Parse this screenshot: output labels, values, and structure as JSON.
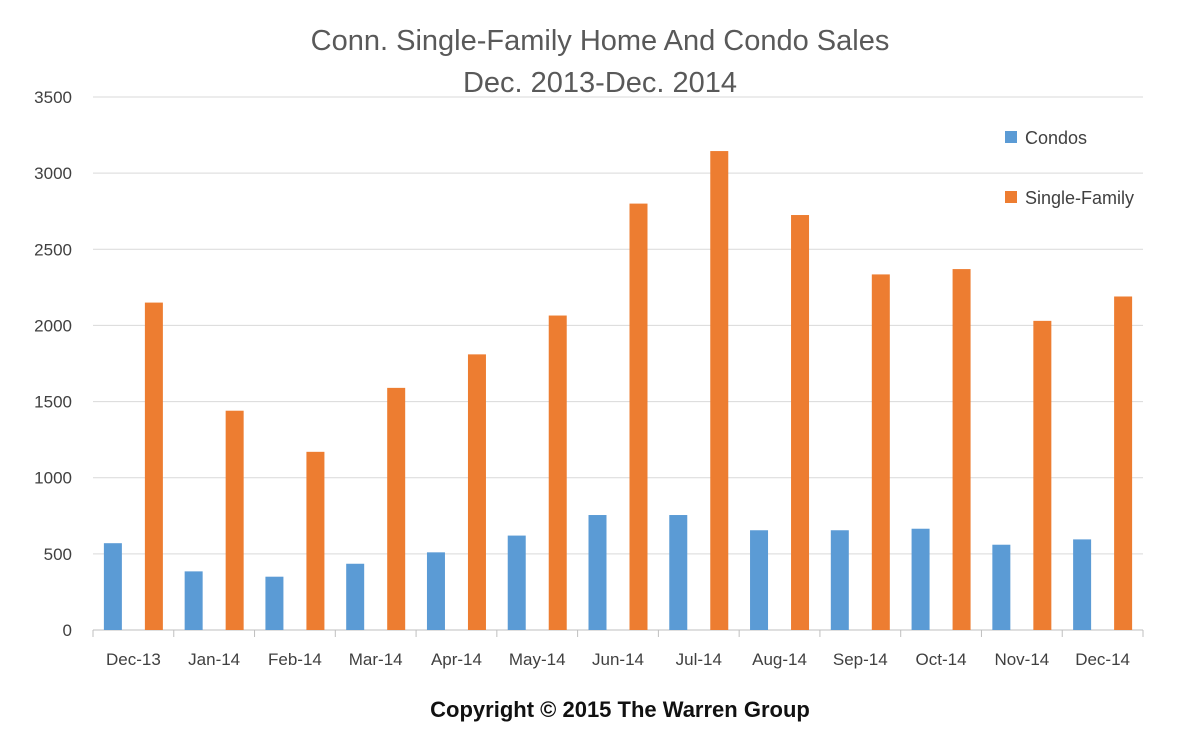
{
  "chart_data": {
    "type": "bar",
    "title_lines": [
      "Conn. Single-Family Home And Condo Sales",
      "Dec. 2013-Dec. 2014"
    ],
    "categories": [
      "Dec-13",
      "Jan-14",
      "Feb-14",
      "Mar-14",
      "Apr-14",
      "May-14",
      "Jun-14",
      "Jul-14",
      "Aug-14",
      "Sep-14",
      "Oct-14",
      "Nov-14",
      "Dec-14"
    ],
    "series": [
      {
        "name": "Condos",
        "color": "#5b9bd5",
        "values": [
          570,
          385,
          350,
          435,
          510,
          620,
          755,
          755,
          655,
          655,
          665,
          560,
          595
        ]
      },
      {
        "name": "Single-Family",
        "color": "#ed7d31",
        "values": [
          2150,
          1440,
          1170,
          1590,
          1810,
          2065,
          2800,
          3145,
          2725,
          2335,
          2370,
          2030,
          2190
        ]
      }
    ],
    "ylim": [
      0,
      3500
    ],
    "yticks": [
      "0",
      "500",
      "1000",
      "1500",
      "2000",
      "2500",
      "3000",
      "3500"
    ],
    "grid": true,
    "legend_position": "top-right"
  },
  "footer": {
    "copyright": "Copyright © 2015 The Warren Group"
  }
}
